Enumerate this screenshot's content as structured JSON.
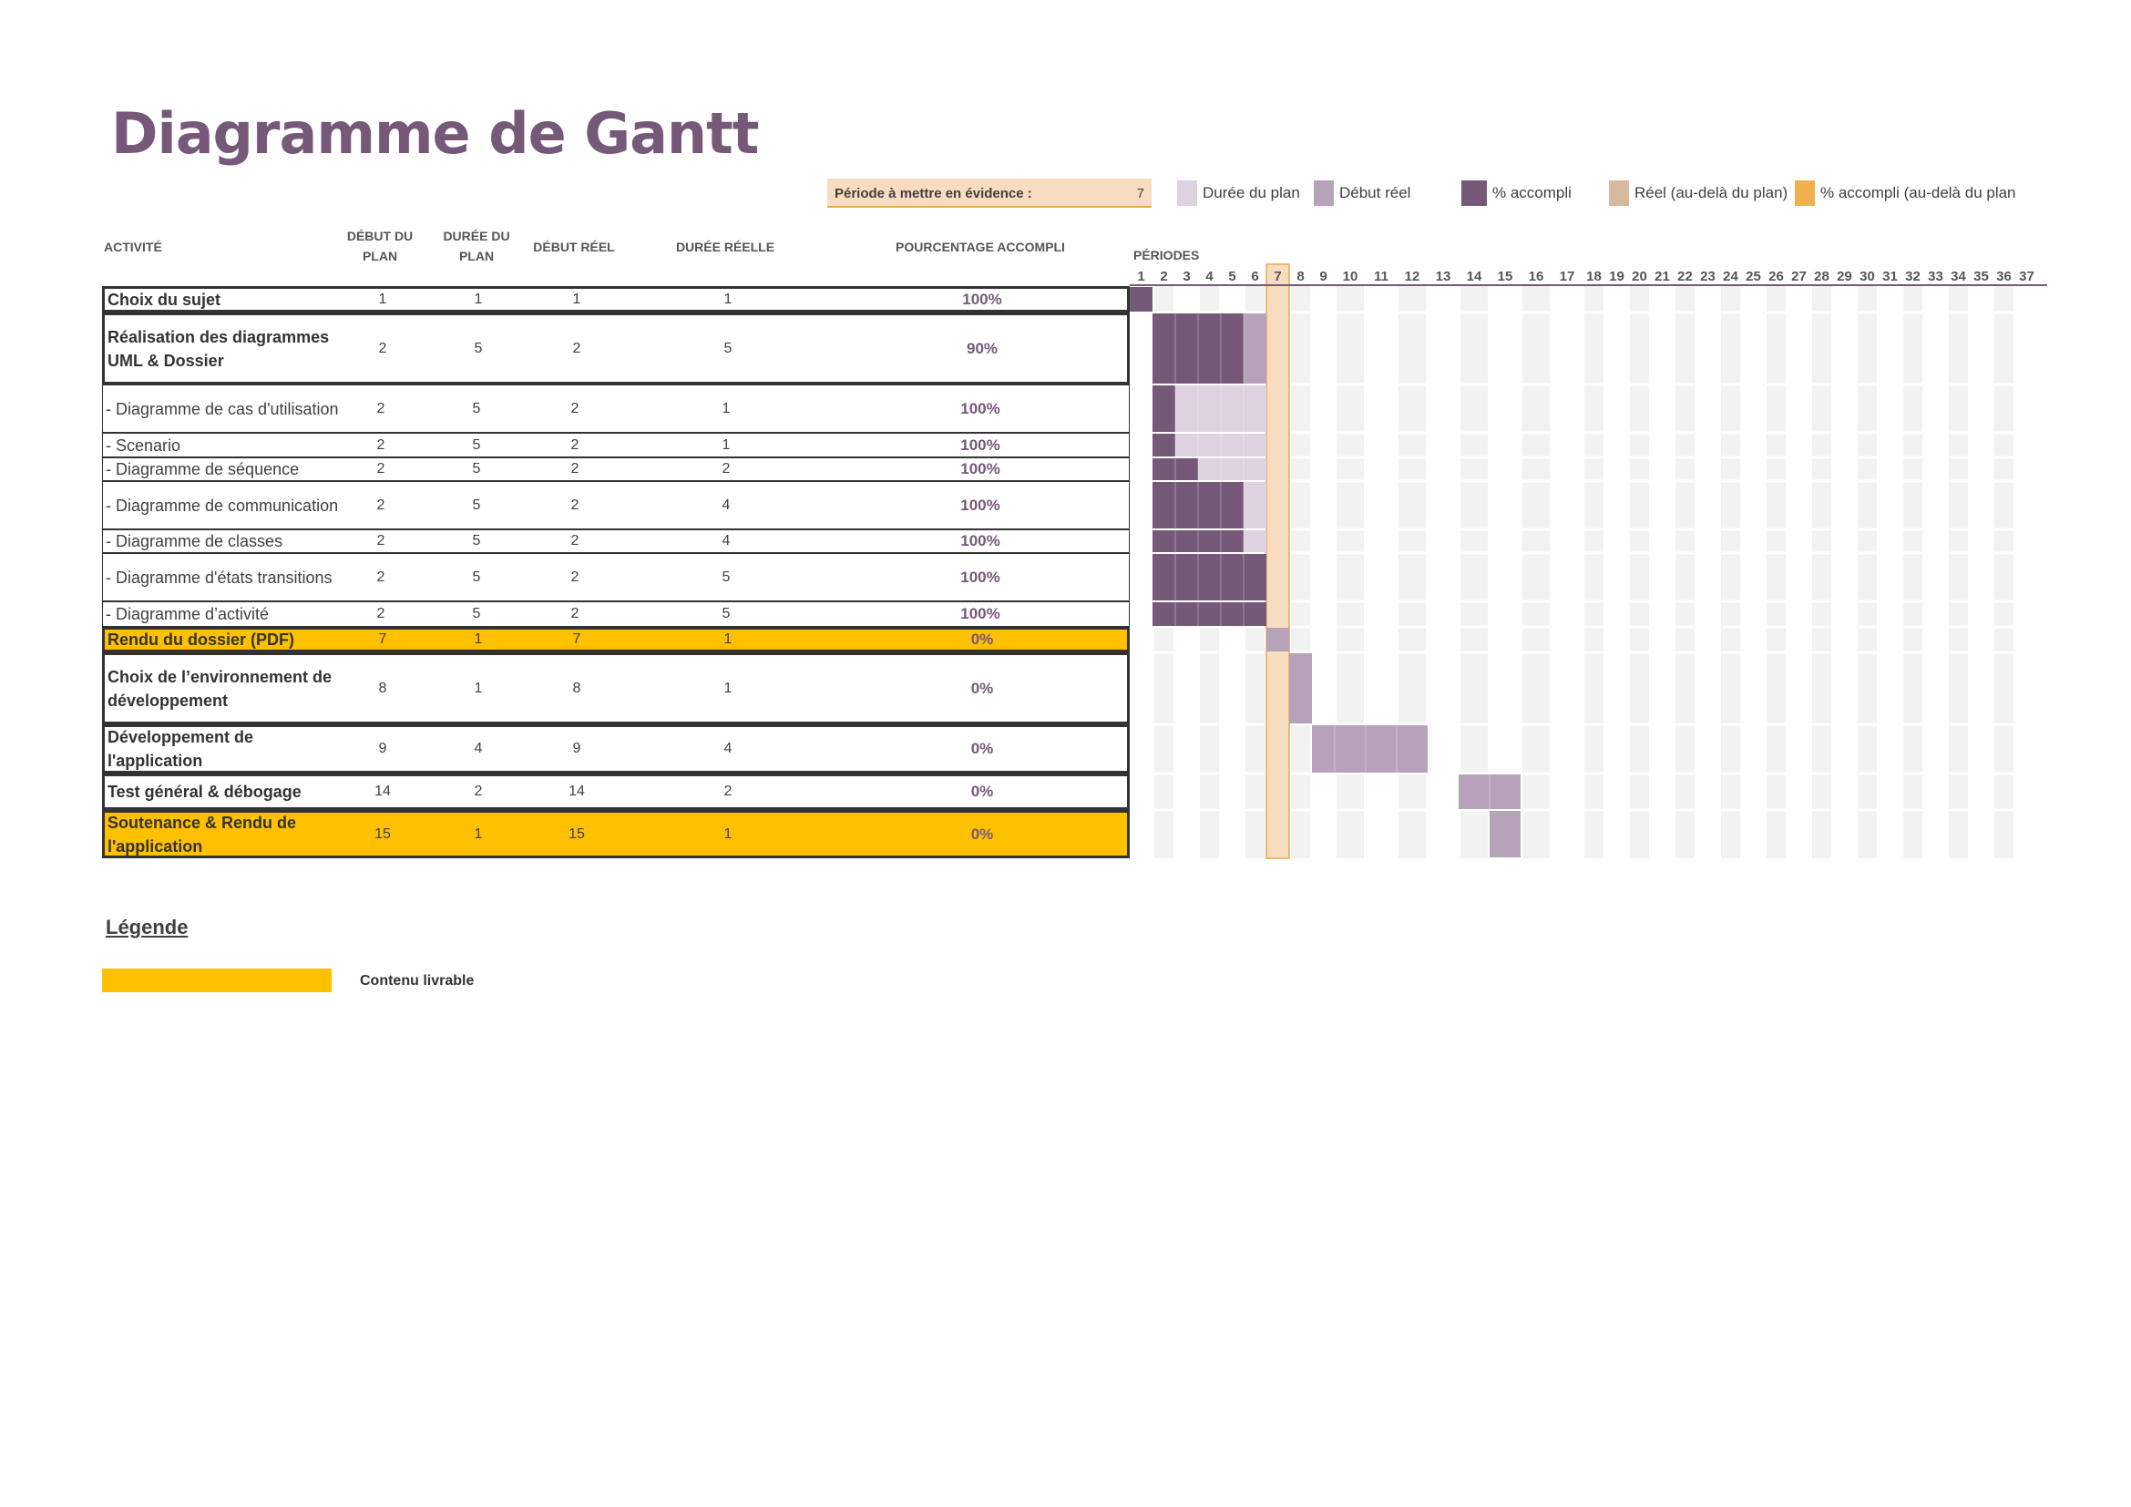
{
  "title": "Diagramme de Gantt",
  "highlight": {
    "label": "Période à mettre en évidence :",
    "value": "7",
    "period": 7
  },
  "legend": [
    {
      "label": "Durée du plan",
      "color": "#ddd3e0"
    },
    {
      "label": "Début réel",
      "color": "#b6a3b9"
    },
    {
      "label": "% accompli",
      "color": "#765878"
    },
    {
      "label": "Réel (au-delà du plan)",
      "color": "#d9b8a0"
    },
    {
      "label": "% accompli (au-delà du plan",
      "color": "#f0b04e"
    }
  ],
  "columns": {
    "activity": "ACTIVITÉ",
    "plan_start": "DÉBUT DU PLAN",
    "plan_duration": "DURÉE DU PLAN",
    "actual_start": "DÉBUT RÉEL",
    "actual_duration": "DURÉE RÉELLE",
    "percent": "POURCENTAGE ACCOMPLI",
    "periods": "PÉRIODES"
  },
  "colors": {
    "plan": "#ddd3e0",
    "actual": "#b6a3b9",
    "complete": "#765878",
    "highlight": "#f8dcbf",
    "highlight_border": "#e8a94f",
    "deliverable": "#ffc000",
    "stripe": "#f2f2f2"
  },
  "period_count": 37,
  "tasks": [
    {
      "name": "Choix du sujet",
      "plan_start": 1,
      "plan_duration": 1,
      "actual_start": 1,
      "actual_duration": 1,
      "percent": "100%",
      "pct": 100,
      "major": true,
      "deliverable": false
    },
    {
      "name": "Réalisation des diagrammes UML & Dossier",
      "plan_start": 2,
      "plan_duration": 5,
      "actual_start": 2,
      "actual_duration": 5,
      "percent": "90%",
      "pct": 90,
      "major": true,
      "deliverable": false
    },
    {
      "name": "- Diagramme de cas d'utilisation",
      "plan_start": 2,
      "plan_duration": 5,
      "actual_start": 2,
      "actual_duration": 1,
      "percent": "100%",
      "pct": 100,
      "major": false,
      "deliverable": false
    },
    {
      "name": "- Scenario",
      "plan_start": 2,
      "plan_duration": 5,
      "actual_start": 2,
      "actual_duration": 1,
      "percent": "100%",
      "pct": 100,
      "major": false,
      "deliverable": false
    },
    {
      "name": "- Diagramme de séquence",
      "plan_start": 2,
      "plan_duration": 5,
      "actual_start": 2,
      "actual_duration": 2,
      "percent": "100%",
      "pct": 100,
      "major": false,
      "deliverable": false
    },
    {
      "name": "- Diagramme de communication",
      "plan_start": 2,
      "plan_duration": 5,
      "actual_start": 2,
      "actual_duration": 4,
      "percent": "100%",
      "pct": 100,
      "major": false,
      "deliverable": false
    },
    {
      "name": "- Diagramme de classes",
      "plan_start": 2,
      "plan_duration": 5,
      "actual_start": 2,
      "actual_duration": 4,
      "percent": "100%",
      "pct": 100,
      "major": false,
      "deliverable": false
    },
    {
      "name": "- Diagramme d'états transitions",
      "plan_start": 2,
      "plan_duration": 5,
      "actual_start": 2,
      "actual_duration": 5,
      "percent": "100%",
      "pct": 100,
      "major": false,
      "deliverable": false
    },
    {
      "name": "- Diagramme d’activité",
      "plan_start": 2,
      "plan_duration": 5,
      "actual_start": 2,
      "actual_duration": 5,
      "percent": "100%",
      "pct": 100,
      "major": false,
      "deliverable": false
    },
    {
      "name": "Rendu du dossier (PDF)",
      "plan_start": 7,
      "plan_duration": 1,
      "actual_start": 7,
      "actual_duration": 1,
      "percent": "0%",
      "pct": 0,
      "major": true,
      "deliverable": true
    },
    {
      "name": "Choix de l’environnement de développement",
      "plan_start": 8,
      "plan_duration": 1,
      "actual_start": 8,
      "actual_duration": 1,
      "percent": "0%",
      "pct": 0,
      "major": true,
      "deliverable": false
    },
    {
      "name": "Développement de l'application",
      "plan_start": 9,
      "plan_duration": 4,
      "actual_start": 9,
      "actual_duration": 4,
      "percent": "0%",
      "pct": 0,
      "major": true,
      "deliverable": false
    },
    {
      "name": "Test général & débogage",
      "plan_start": 14,
      "plan_duration": 2,
      "actual_start": 14,
      "actual_duration": 2,
      "percent": "0%",
      "pct": 0,
      "major": true,
      "deliverable": false
    },
    {
      "name": "Soutenance & Rendu de l'application",
      "plan_start": 15,
      "plan_duration": 1,
      "actual_start": 15,
      "actual_duration": 1,
      "percent": "0%",
      "pct": 0,
      "major": true,
      "deliverable": true
    }
  ],
  "legend_section": {
    "title": "Légende",
    "label": "Contenu livrable"
  }
}
